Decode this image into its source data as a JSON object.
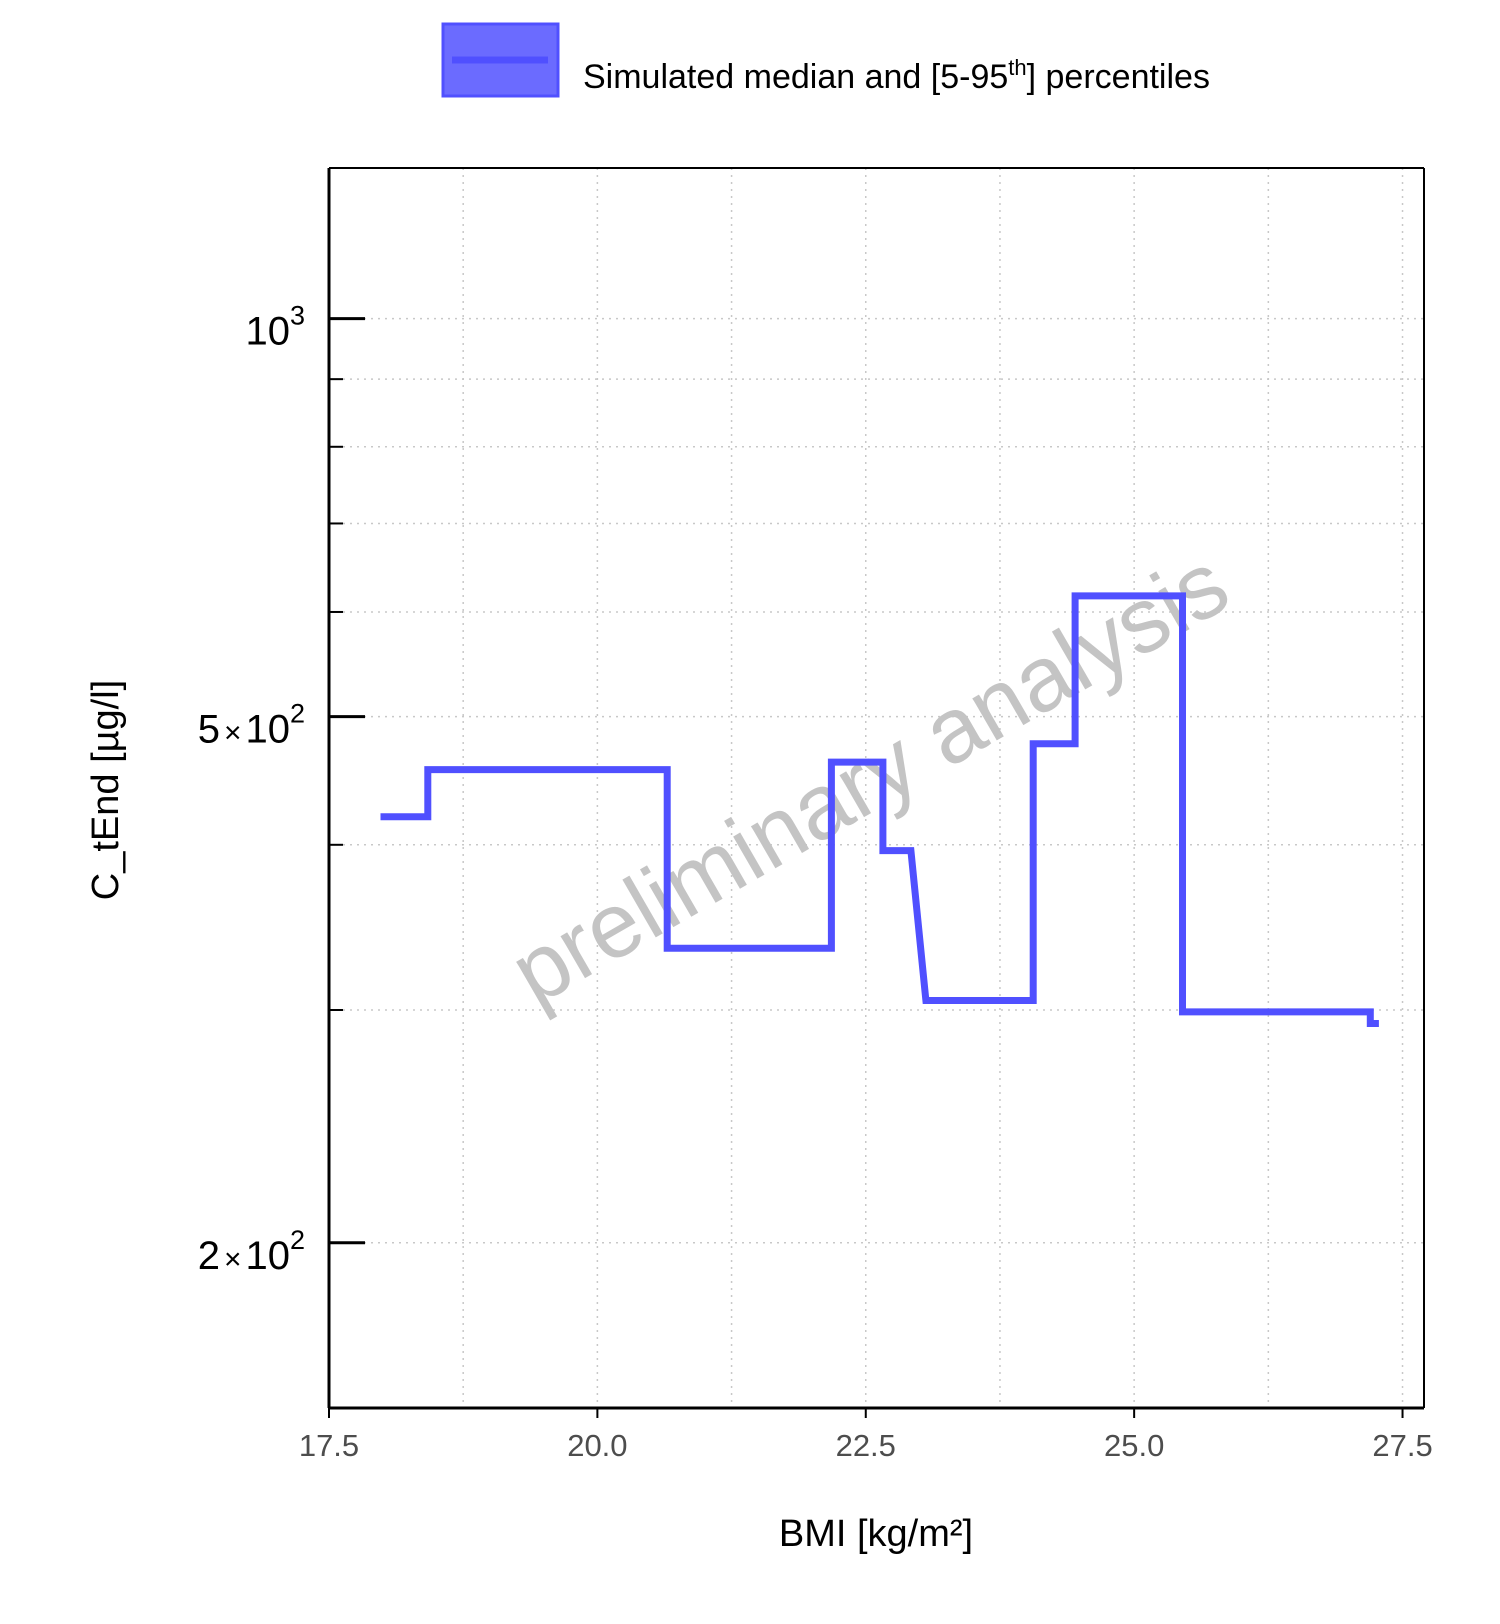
{
  "chart_data": {
    "type": "line",
    "title": "",
    "xlabel": "BMI [kg/m²]",
    "ylabel": "C_tEnd [µg/l]",
    "x_scale": "linear",
    "y_scale": "log",
    "xlim": [
      17.5,
      27.7
    ],
    "ylim": [
      150,
      1300
    ],
    "x_ticks": [
      17.5,
      20.0,
      22.5,
      25.0,
      27.5
    ],
    "x_tick_labels": [
      "17.5",
      "20.0",
      "22.5",
      "25.0",
      "27.5"
    ],
    "y_ticks": [
      {
        "value": 1000,
        "mantissa": "",
        "times": "",
        "base": "10",
        "exponent": "3"
      },
      {
        "value": 500,
        "mantissa": "5",
        "times": "×",
        "base": "10",
        "exponent": "2"
      },
      {
        "value": 200,
        "mantissa": "2",
        "times": "×",
        "base": "10",
        "exponent": "2"
      }
    ],
    "y_minor_ticks": [
      300,
      400,
      600,
      700,
      800,
      900
    ],
    "grid": true,
    "legend": {
      "position": "top",
      "text_before": "Simulated median and [5-95",
      "superscript": "th",
      "text_after": "] percentiles",
      "color": "#5050ff",
      "fill": "#6b6bff"
    },
    "watermark": "preliminary analysis",
    "series": [
      {
        "color": "#5050ff",
        "points": [
          [
            17.98,
            420
          ],
          [
            18.42,
            420
          ],
          [
            18.42,
            456
          ],
          [
            20.65,
            456
          ],
          [
            20.65,
            334
          ],
          [
            22.18,
            334
          ],
          [
            22.18,
            462
          ],
          [
            22.66,
            462
          ],
          [
            22.66,
            396
          ],
          [
            22.92,
            396
          ],
          [
            23.06,
            305
          ],
          [
            24.06,
            305
          ],
          [
            24.06,
            477
          ],
          [
            24.45,
            477
          ],
          [
            24.45,
            617
          ],
          [
            25.45,
            617
          ],
          [
            25.45,
            299
          ],
          [
            27.2,
            299
          ],
          [
            27.2,
            293
          ],
          [
            27.28,
            293
          ]
        ]
      }
    ]
  }
}
